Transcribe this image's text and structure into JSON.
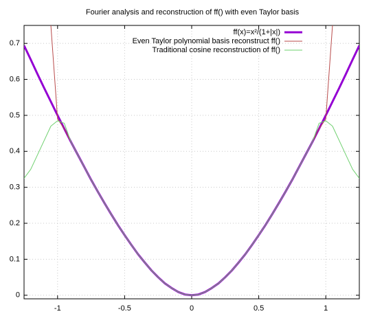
{
  "chart_data": {
    "type": "line",
    "title": "Fourier analysis and reconstruction of ff() with even Taylor basis",
    "x": [
      -1.25,
      -1.2,
      -1.15,
      -1.1,
      -1.05,
      -1.0,
      -0.95,
      -0.9,
      -0.85,
      -0.8,
      -0.75,
      -0.7,
      -0.65,
      -0.6,
      -0.55,
      -0.5,
      -0.45,
      -0.4,
      -0.35,
      -0.3,
      -0.25,
      -0.2,
      -0.15,
      -0.1,
      -0.05,
      0,
      0.05,
      0.1,
      0.15,
      0.2,
      0.25,
      0.3,
      0.35,
      0.4,
      0.45,
      0.5,
      0.55,
      0.6,
      0.65,
      0.7,
      0.75,
      0.8,
      0.85,
      0.9,
      0.95,
      1.0,
      1.05,
      1.1,
      1.15,
      1.2,
      1.25
    ],
    "series": [
      {
        "name": "ff(x)=x²/(1+|x|)",
        "color": "#9400d3",
        "width": 3,
        "values": [
          0.694,
          0.655,
          0.615,
          0.576,
          0.538,
          0.5,
          0.463,
          0.426,
          0.391,
          0.356,
          0.321,
          0.288,
          0.256,
          0.225,
          0.195,
          0.167,
          0.14,
          0.114,
          0.091,
          0.069,
          0.05,
          0.033,
          0.02,
          0.009,
          0.002,
          0,
          0.002,
          0.009,
          0.02,
          0.033,
          0.05,
          0.069,
          0.091,
          0.114,
          0.14,
          0.167,
          0.195,
          0.225,
          0.256,
          0.288,
          0.321,
          0.356,
          0.391,
          0.426,
          0.463,
          0.5,
          0.538,
          0.576,
          0.615,
          0.655,
          0.694
        ]
      },
      {
        "name": "Even Taylor polynomial basis reconstruct ff()",
        "color": "#b84a4a",
        "width": 1,
        "values": [
          null,
          null,
          null,
          null,
          0.75,
          0.49,
          0.463,
          0.426,
          0.391,
          0.356,
          0.321,
          0.288,
          0.256,
          0.225,
          0.195,
          0.167,
          0.14,
          0.114,
          0.091,
          0.069,
          0.05,
          0.033,
          0.02,
          0.009,
          0.002,
          0,
          0.002,
          0.009,
          0.02,
          0.033,
          0.05,
          0.069,
          0.091,
          0.114,
          0.14,
          0.167,
          0.195,
          0.225,
          0.256,
          0.288,
          0.321,
          0.356,
          0.391,
          0.426,
          0.463,
          0.49,
          0.75,
          null,
          null,
          null,
          null
        ]
      },
      {
        "name": "Traditional cosine reconstruction of ff()",
        "color": "#6fd06f",
        "width": 1,
        "values": [
          0.325,
          0.35,
          0.39,
          0.43,
          0.47,
          0.485,
          0.478,
          0.426,
          0.391,
          0.356,
          0.321,
          0.288,
          0.256,
          0.225,
          0.195,
          0.167,
          0.14,
          0.114,
          0.091,
          0.069,
          0.05,
          0.033,
          0.02,
          0.009,
          0.002,
          0,
          0.002,
          0.009,
          0.02,
          0.033,
          0.05,
          0.069,
          0.091,
          0.114,
          0.14,
          0.167,
          0.195,
          0.225,
          0.256,
          0.288,
          0.321,
          0.356,
          0.391,
          0.426,
          0.478,
          0.485,
          0.47,
          0.43,
          0.39,
          0.35,
          0.325
        ]
      }
    ],
    "xlim": [
      -1.25,
      1.25
    ],
    "ylim": [
      -0.01,
      0.75
    ],
    "xticks": [
      -1,
      -0.5,
      0,
      0.5,
      1
    ],
    "yticks": [
      0,
      0.1,
      0.2,
      0.3,
      0.4,
      0.5,
      0.6,
      0.7
    ],
    "grid": true,
    "legend": "top-right"
  }
}
